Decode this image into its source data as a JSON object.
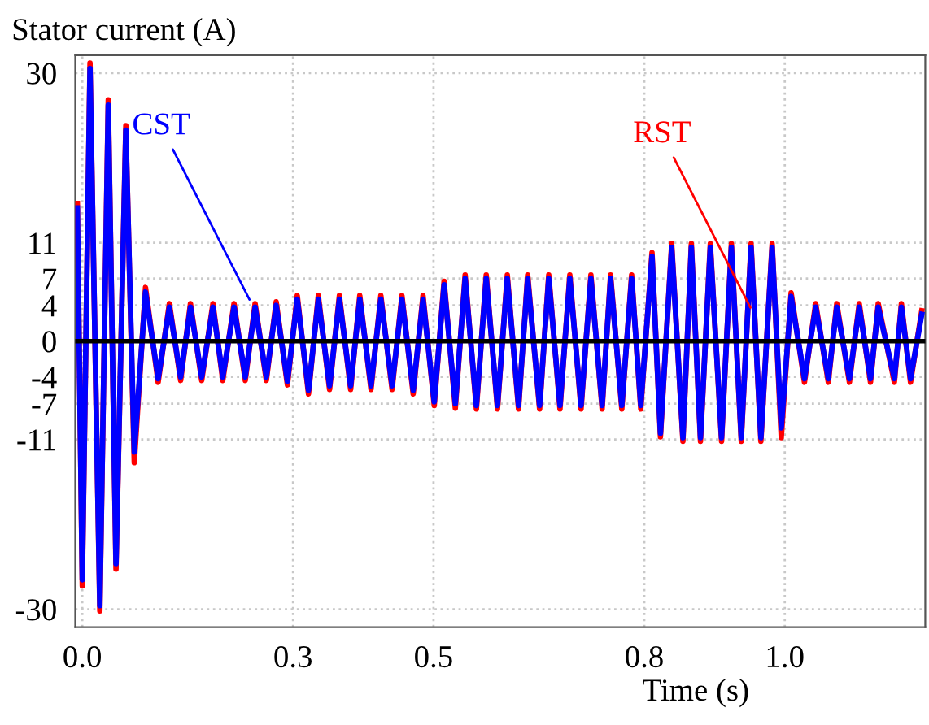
{
  "chart_data": {
    "type": "line",
    "ylabel": "Stator current (A)",
    "xlabel": "Time (s)",
    "x": [
      -0.007,
      0.0,
      0.011,
      0.025,
      0.037,
      0.048,
      0.062,
      0.074,
      0.09,
      0.108,
      0.124,
      0.14,
      0.154,
      0.17,
      0.186,
      0.2,
      0.216,
      0.232,
      0.246,
      0.262,
      0.276,
      0.292,
      0.306,
      0.322,
      0.336,
      0.352,
      0.366,
      0.382,
      0.395,
      0.411,
      0.425,
      0.441,
      0.455,
      0.471,
      0.485,
      0.501,
      0.515,
      0.531,
      0.545,
      0.561,
      0.575,
      0.591,
      0.605,
      0.621,
      0.634,
      0.651,
      0.664,
      0.68,
      0.694,
      0.71,
      0.724,
      0.74,
      0.752,
      0.768,
      0.782,
      0.795,
      0.811,
      0.823,
      0.839,
      0.855,
      0.867,
      0.88,
      0.894,
      0.91,
      0.924,
      0.938,
      0.952,
      0.966,
      0.982,
      0.995,
      1.009,
      1.028,
      1.044,
      1.062,
      1.074,
      1.092,
      1.106,
      1.122,
      1.133,
      1.156,
      1.166,
      1.179,
      1.195
    ],
    "series": [
      {
        "color": "#ff0000",
        "values": [
          15.4,
          -27.4,
          31.1,
          -30.2,
          27.0,
          -25.5,
          24.1,
          -13.6,
          6.0,
          -4.6,
          4.2,
          -4.4,
          4.2,
          -4.4,
          4.2,
          -4.4,
          4.2,
          -4.4,
          4.2,
          -4.4,
          4.4,
          -4.9,
          5.1,
          -5.9,
          5.1,
          -5.4,
          5.1,
          -5.4,
          5.1,
          -5.4,
          5.1,
          -5.4,
          5.1,
          -5.9,
          5.1,
          -7.2,
          6.7,
          -7.5,
          7.4,
          -7.6,
          7.4,
          -7.6,
          7.4,
          -7.6,
          7.4,
          -7.6,
          7.4,
          -7.6,
          7.4,
          -7.6,
          7.4,
          -7.6,
          7.4,
          -7.6,
          7.4,
          -7.6,
          9.9,
          -10.7,
          10.9,
          -11.2,
          10.9,
          -11.2,
          10.9,
          -11.2,
          10.9,
          -11.2,
          10.9,
          -11.2,
          10.9,
          -10.8,
          5.4,
          -4.6,
          4.2,
          -4.6,
          4.2,
          -4.6,
          4.2,
          -4.6,
          4.2,
          -4.6,
          4.2,
          -4.6,
          3.4
        ]
      },
      {
        "color": "#0000ff",
        "values": [
          14.9,
          -26.7,
          30.5,
          -29.6,
          26.4,
          -24.9,
          23.6,
          -12.4,
          5.5,
          -4.2,
          3.8,
          -4,
          3.8,
          -4,
          3.8,
          -4,
          3.8,
          -4,
          3.8,
          -4,
          4,
          -4.5,
          4.7,
          -5.5,
          4.7,
          -5,
          4.7,
          -5,
          4.7,
          -5,
          4.7,
          -5,
          4.7,
          -5.5,
          4.7,
          -6.8,
          6.3,
          -7,
          7,
          -7.2,
          7,
          -7.2,
          7,
          -7.2,
          7,
          -7.2,
          7,
          -7.2,
          7,
          -7.2,
          7,
          -7.2,
          7,
          -7.2,
          7,
          -7.2,
          9.5,
          -10.3,
          10.5,
          -10.8,
          10.5,
          -10.8,
          10.5,
          -10.8,
          10.5,
          -10.8,
          10.5,
          -10.8,
          10.5,
          -9.7,
          5,
          -4.2,
          3.8,
          -4.2,
          3.8,
          -4.2,
          3.8,
          -4.2,
          3.8,
          -4.2,
          3.8,
          -4.2,
          3
        ]
      }
    ],
    "annotations": [
      {
        "text": "RST",
        "x": 0.954,
        "y": 3.3
      },
      {
        "text": "CST",
        "x": 0.241,
        "y": 4.2
      }
    ],
    "xlim": [
      -0.01,
      1.2
    ],
    "xticks": [
      {
        "value": 0.0,
        "label": "0.0"
      },
      0.3,
      0.5,
      0.8,
      {
        "value": 1.0,
        "label": "1.0"
      }
    ],
    "ylim": [
      -32,
      32
    ],
    "yticks": [
      30,
      11,
      7,
      4,
      0,
      -4,
      -7,
      -11,
      -30
    ],
    "ref_lines": [
      {
        "axis": "y",
        "value": 0,
        "color": "#000000"
      }
    ],
    "grid": true,
    "marker": "none",
    "line_style": "solid"
  }
}
